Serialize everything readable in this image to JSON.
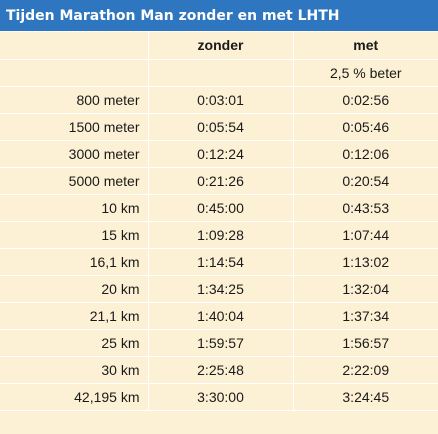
{
  "title": "Tijden Marathon Man zonder en met LHTH",
  "columns": {
    "label": "",
    "zonder": "zonder",
    "met": "met"
  },
  "note": {
    "label": "",
    "zonder": "",
    "met": "2,5 % beter"
  },
  "rows": [
    {
      "label": "800 meter",
      "zonder": "0:03:01",
      "met": "0:02:56"
    },
    {
      "label": "1500 meter",
      "zonder": "0:05:54",
      "met": "0:05:46"
    },
    {
      "label": "3000 meter",
      "zonder": "0:12:24",
      "met": "0:12:06"
    },
    {
      "label": "5000 meter",
      "zonder": "0:21:26",
      "met": "0:20:54"
    },
    {
      "label": "10 km",
      "zonder": "0:45:00",
      "met": "0:43:53"
    },
    {
      "label": "15 km",
      "zonder": "1:09:28",
      "met": "1:07:44"
    },
    {
      "label": "16,1 km",
      "zonder": "1:14:54",
      "met": "1:13:02"
    },
    {
      "label": "20 km",
      "zonder": "1:34:25",
      "met": "1:32:04"
    },
    {
      "label": "21,1 km",
      "zonder": "1:40:04",
      "met": "1:37:34"
    },
    {
      "label": "25 km",
      "zonder": "1:59:57",
      "met": "1:56:57"
    },
    {
      "label": "30 km",
      "zonder": "2:25:48",
      "met": "2:22:09"
    },
    {
      "label": "42,195 km",
      "zonder": "3:30:00",
      "met": "3:24:45"
    }
  ],
  "colors": {
    "header_bg": "#2e76bf",
    "header_text": "#ffffff",
    "cell_bg": "#fdf1d5",
    "grid": "#ffffff"
  }
}
